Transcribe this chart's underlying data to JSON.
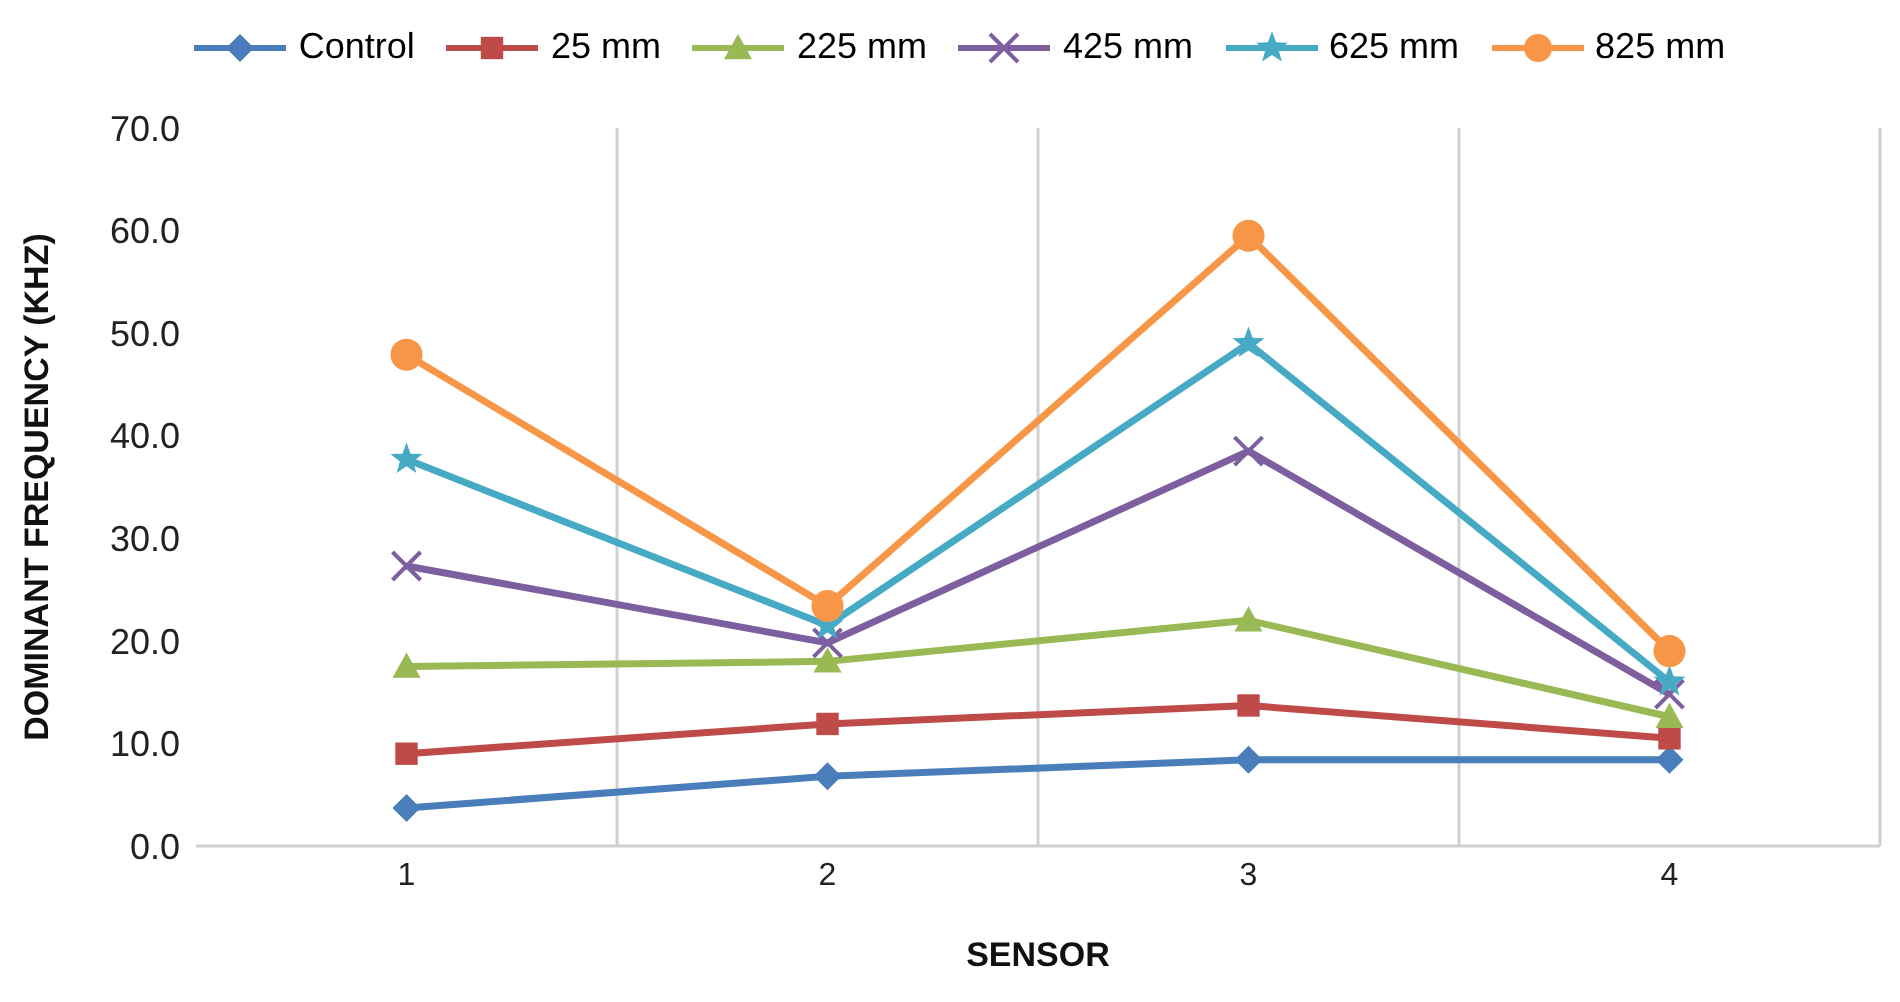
{
  "chart_data": {
    "type": "line",
    "xlabel": "SENSOR",
    "ylabel": "DOMINANT FREQUENCY (KHZ)",
    "categories": [
      "1",
      "2",
      "3",
      "4"
    ],
    "series": [
      {
        "name": "Control",
        "color": "#4a7ebb",
        "marker": "diamond",
        "values": [
          3.7,
          6.8,
          8.4,
          8.4
        ]
      },
      {
        "name": "25 mm",
        "color": "#be4b48",
        "marker": "square",
        "values": [
          9.0,
          11.9,
          13.7,
          10.5
        ]
      },
      {
        "name": "225 mm",
        "color": "#98b954",
        "marker": "triangle",
        "values": [
          17.5,
          18.0,
          22.0,
          12.6
        ]
      },
      {
        "name": "425 mm",
        "color": "#7d5fa0",
        "marker": "cross",
        "values": [
          27.3,
          19.8,
          38.5,
          14.8
        ]
      },
      {
        "name": "625 mm",
        "color": "#46aac5",
        "marker": "star",
        "values": [
          37.7,
          21.5,
          49.0,
          16.0
        ]
      },
      {
        "name": "825 mm",
        "color": "#f79646",
        "marker": "circle",
        "values": [
          47.9,
          23.4,
          59.5,
          19.0
        ]
      }
    ],
    "ylim": [
      0,
      70
    ],
    "yticks": [
      {
        "value": 0,
        "label": "0.0"
      },
      {
        "value": 10,
        "label": "10.0"
      },
      {
        "value": 20,
        "label": "20.0"
      },
      {
        "value": 30,
        "label": "30.0"
      },
      {
        "value": 40,
        "label": "40.0"
      },
      {
        "value": 50,
        "label": "50.0"
      },
      {
        "value": 60,
        "label": "60.0"
      },
      {
        "value": 70,
        "label": "70.0"
      }
    ],
    "grid": "x",
    "legend": "top",
    "line_style": "solid"
  }
}
